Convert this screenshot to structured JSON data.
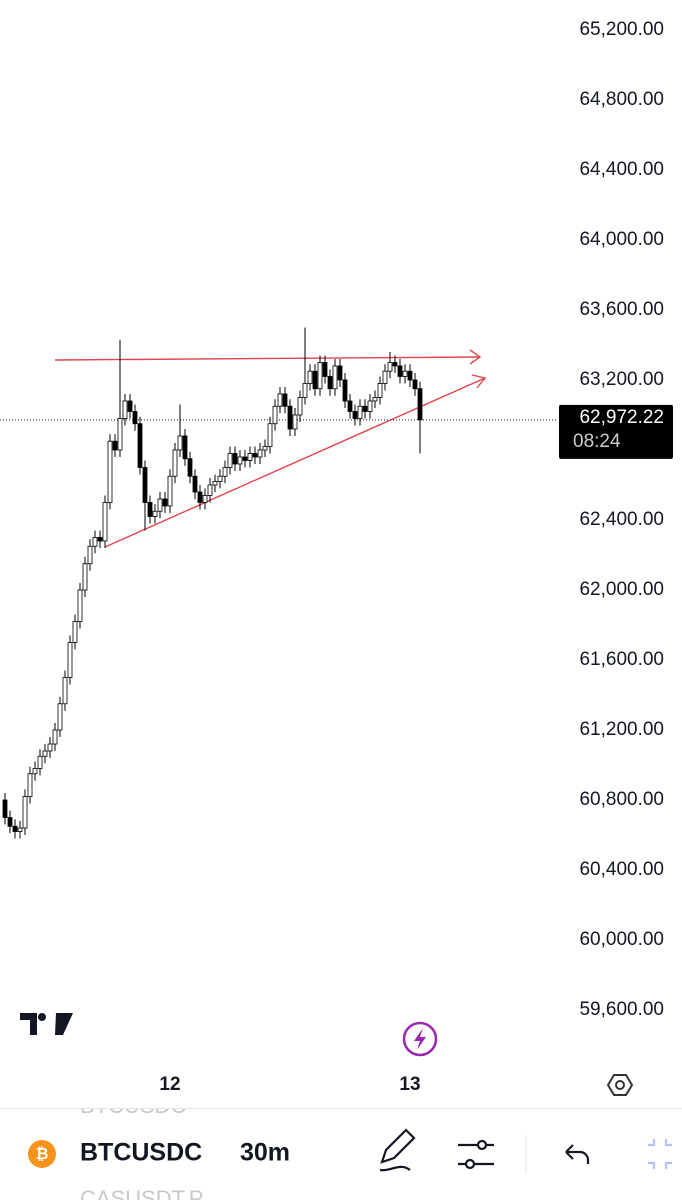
{
  "chart_data": {
    "type": "candlestick",
    "symbol": "BTCUSDC",
    "interval": "30m",
    "ghost_symbol_above": "BTCUSDC",
    "ghost_symbol_below": "CASUSDT.P",
    "categories": [
      null,
      null,
      null,
      null,
      null,
      null,
      null,
      null,
      null,
      null,
      null,
      null,
      null,
      null,
      null,
      null,
      null,
      null,
      null,
      null,
      null,
      null,
      null,
      null,
      null,
      null,
      null,
      null,
      null,
      null,
      null,
      null,
      null,
      "12",
      null,
      null,
      null,
      null,
      null,
      null,
      null,
      null,
      null,
      null,
      null,
      null,
      null,
      null,
      null,
      null,
      null,
      null,
      null,
      null,
      null,
      null,
      null,
      null,
      null,
      null,
      null,
      null,
      null,
      null,
      null,
      null,
      null,
      null,
      null,
      null,
      null,
      null,
      null,
      null,
      null,
      null,
      null,
      null,
      null,
      null,
      null,
      "13",
      null,
      null
    ],
    "open": [
      60800,
      60700,
      60650,
      60620,
      60640,
      60820,
      60950,
      60980,
      61050,
      61080,
      61120,
      61200,
      61350,
      61500,
      61700,
      61820,
      62000,
      62150,
      62250,
      62300,
      62280,
      62500,
      62850,
      62800,
      62980,
      63080,
      63020,
      62950,
      62700,
      62500,
      62420,
      62450,
      62520,
      62480,
      62650,
      62800,
      62880,
      62750,
      62650,
      62560,
      62500,
      62540,
      62600,
      62620,
      62650,
      62700,
      62780,
      62720,
      62760,
      62740,
      62780,
      62760,
      62800,
      62820,
      62950,
      63050,
      63120,
      63050,
      62920,
      63000,
      63100,
      63180,
      63250,
      63150,
      63300,
      63220,
      63150,
      63280,
      63200,
      63080,
      63020,
      62980,
      63050,
      63020,
      63080,
      63100,
      63180,
      63250,
      63300,
      63280,
      63220,
      63250,
      63200,
      63150
    ],
    "high": [
      60840,
      60740,
      60690,
      60680,
      60860,
      60990,
      61020,
      61090,
      61120,
      61160,
      61240,
      61390,
      61540,
      61740,
      61860,
      62040,
      62190,
      62290,
      62340,
      62340,
      62540,
      62890,
      62890,
      63430,
      63120,
      63120,
      63060,
      62990,
      62740,
      62540,
      62490,
      62560,
      62560,
      62690,
      62840,
      63060,
      62920,
      62790,
      62690,
      62600,
      62580,
      62640,
      62660,
      62690,
      62740,
      62820,
      62820,
      62800,
      62800,
      62820,
      62820,
      62840,
      62860,
      62990,
      63090,
      63160,
      63160,
      63090,
      63040,
      63140,
      63500,
      63290,
      63290,
      63340,
      63340,
      63260,
      63320,
      63320,
      63240,
      63120,
      63060,
      63090,
      63090,
      63120,
      63140,
      63220,
      63290,
      63360,
      63340,
      63320,
      63290,
      63290,
      63240,
      63190
    ],
    "low": [
      60660,
      60610,
      60580,
      60580,
      60600,
      60780,
      60910,
      60940,
      61010,
      61040,
      61080,
      61160,
      61310,
      61460,
      61660,
      61780,
      61960,
      62110,
      62210,
      62240,
      62240,
      62460,
      62760,
      62760,
      62940,
      62980,
      62910,
      62660,
      62340,
      62380,
      62380,
      62410,
      62440,
      62440,
      62610,
      62760,
      62710,
      62610,
      62520,
      62460,
      62460,
      62500,
      62560,
      62580,
      62610,
      62660,
      62680,
      62680,
      62700,
      62700,
      62720,
      62720,
      62760,
      62780,
      62910,
      63010,
      63010,
      62880,
      62880,
      62960,
      63060,
      63140,
      63110,
      63110,
      63180,
      63110,
      63110,
      63160,
      63040,
      62980,
      62940,
      62940,
      62980,
      62980,
      63040,
      63060,
      63140,
      63210,
      63240,
      63180,
      63180,
      63160,
      63110,
      62780
    ],
    "close": [
      60700,
      60650,
      60620,
      60640,
      60820,
      60950,
      60980,
      61050,
      61080,
      61120,
      61200,
      61350,
      61500,
      61700,
      61820,
      62000,
      62150,
      62250,
      62300,
      62280,
      62500,
      62850,
      62800,
      62980,
      63080,
      63020,
      62950,
      62700,
      62500,
      62420,
      62450,
      62520,
      62480,
      62650,
      62800,
      62880,
      62750,
      62650,
      62560,
      62500,
      62540,
      62600,
      62620,
      62650,
      62700,
      62780,
      62720,
      62760,
      62740,
      62780,
      62760,
      62800,
      62820,
      62950,
      63050,
      63120,
      63050,
      62920,
      63000,
      63100,
      63180,
      63250,
      63150,
      63300,
      63220,
      63150,
      63280,
      63200,
      63080,
      63020,
      62980,
      63050,
      63020,
      63080,
      63100,
      63180,
      63250,
      63300,
      63280,
      63220,
      63250,
      63200,
      63150,
      62972.22
    ],
    "up_color": "#ffffff",
    "down_color": "#000000",
    "outline_color": "#000000",
    "ylim": [
      59286,
      65371
    ],
    "yticks": [
      {
        "value": 65200,
        "label": "65,200.00"
      },
      {
        "value": 64800,
        "label": "64,800.00"
      },
      {
        "value": 64400,
        "label": "64,400.00"
      },
      {
        "value": 64000,
        "label": "64,000.00"
      },
      {
        "value": 63600,
        "label": "63,600.00"
      },
      {
        "value": 63200,
        "label": "63,200.00"
      },
      {
        "value": 62400,
        "label": "62,400.00"
      },
      {
        "value": 62000,
        "label": "62,000.00"
      },
      {
        "value": 61600,
        "label": "61,600.00"
      },
      {
        "value": 61200,
        "label": "61,200.00"
      },
      {
        "value": 60800,
        "label": "60,800.00"
      },
      {
        "value": 60400,
        "label": "60,400.00"
      },
      {
        "value": 60000,
        "label": "60,000.00"
      },
      {
        "value": 59600,
        "label": "59,600.00"
      }
    ],
    "last_price": {
      "value": 62972.22,
      "label": "62,972.22"
    },
    "countdown": "08:24"
  }
}
